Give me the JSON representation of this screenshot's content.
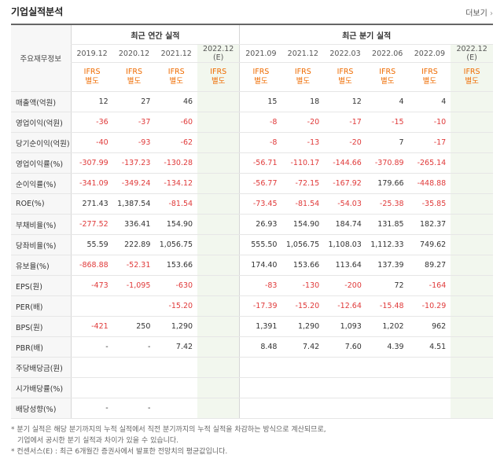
{
  "header": {
    "title": "기업실적분석",
    "more": "더보기"
  },
  "table": {
    "corner": "주요재무정보",
    "groups": [
      {
        "label": "최근 연간 실적",
        "periods": [
          {
            "date": "2019.12",
            "standard": "IFRS",
            "basis": "별도"
          },
          {
            "date": "2020.12",
            "standard": "IFRS",
            "basis": "별도"
          },
          {
            "date": "2021.12",
            "standard": "IFRS",
            "basis": "별도"
          },
          {
            "date": "2022.12",
            "note": "(E)",
            "standard": "IFRS",
            "basis": "별도"
          }
        ]
      },
      {
        "label": "최근 분기 실적",
        "periods": [
          {
            "date": "2021.09",
            "standard": "IFRS",
            "basis": "별도"
          },
          {
            "date": "2021.12",
            "standard": "IFRS",
            "basis": "별도"
          },
          {
            "date": "2022.03",
            "standard": "IFRS",
            "basis": "별도"
          },
          {
            "date": "2022.06",
            "standard": "IFRS",
            "basis": "별도"
          },
          {
            "date": "2022.09",
            "standard": "IFRS",
            "basis": "별도"
          },
          {
            "date": "2022.12",
            "note": "(E)",
            "standard": "IFRS",
            "basis": "별도"
          }
        ]
      }
    ],
    "rows": [
      {
        "label": "매출액(억원)",
        "values": [
          "12",
          "27",
          "46",
          null,
          "15",
          "18",
          "12",
          "4",
          "4",
          null
        ]
      },
      {
        "label": "영업이익(억원)",
        "values": [
          "-36",
          "-37",
          "-60",
          null,
          "-8",
          "-20",
          "-17",
          "-15",
          "-10",
          null
        ]
      },
      {
        "label": "당기순이익(억원)",
        "values": [
          "-40",
          "-93",
          "-62",
          null,
          "-8",
          "-13",
          "-20",
          "7",
          "-17",
          null
        ]
      },
      {
        "label": "영업이익률(%)",
        "values": [
          "-307.99",
          "-137.23",
          "-130.28",
          null,
          "-56.71",
          "-110.17",
          "-144.66",
          "-370.89",
          "-265.14",
          null
        ]
      },
      {
        "label": "순이익률(%)",
        "values": [
          "-341.09",
          "-349.24",
          "-134.12",
          null,
          "-56.77",
          "-72.15",
          "-167.92",
          "179.66",
          "-448.88",
          null
        ]
      },
      {
        "label": "ROE(%)",
        "values": [
          "271.43",
          "1,387.54",
          "-81.54",
          null,
          "-73.45",
          "-81.54",
          "-54.03",
          "-25.38",
          "-35.85",
          null
        ]
      },
      {
        "label": "부채비율(%)",
        "values": [
          "-277.52",
          "336.41",
          "154.90",
          null,
          "26.93",
          "154.90",
          "184.74",
          "131.85",
          "182.37",
          null
        ]
      },
      {
        "label": "당좌비율(%)",
        "values": [
          "55.59",
          "222.89",
          "1,056.75",
          null,
          "555.50",
          "1,056.75",
          "1,108.03",
          "1,112.33",
          "749.62",
          null
        ]
      },
      {
        "label": "유보율(%)",
        "values": [
          "-868.88",
          "-52.31",
          "153.66",
          null,
          "174.40",
          "153.66",
          "113.64",
          "137.39",
          "89.27",
          null
        ]
      },
      {
        "label": "EPS(원)",
        "values": [
          "-473",
          "-1,095",
          "-630",
          null,
          "-83",
          "-130",
          "-200",
          "72",
          "-164",
          null
        ]
      },
      {
        "label": "PER(배)",
        "values": [
          null,
          null,
          "-15.20",
          null,
          "-17.39",
          "-15.20",
          "-12.64",
          "-15.48",
          "-10.29",
          null
        ]
      },
      {
        "label": "BPS(원)",
        "values": [
          "-421",
          "250",
          "1,290",
          null,
          "1,391",
          "1,290",
          "1,093",
          "1,202",
          "962",
          null
        ]
      },
      {
        "label": "PBR(배)",
        "values": [
          "-",
          "-",
          "7.42",
          null,
          "8.48",
          "7.42",
          "7.60",
          "4.39",
          "4.51",
          null
        ]
      },
      {
        "label": "주당배당금(원)",
        "values": [
          null,
          null,
          null,
          null,
          null,
          null,
          null,
          null,
          null,
          null
        ]
      },
      {
        "label": "시가배당률(%)",
        "values": [
          null,
          null,
          null,
          null,
          null,
          null,
          null,
          null,
          null,
          null
        ]
      },
      {
        "label": "배당성향(%)",
        "values": [
          "-",
          "-",
          null,
          null,
          null,
          null,
          null,
          null,
          null,
          null
        ]
      }
    ]
  },
  "footnotes": [
    "* 분기 실적은 해당 분기까지의 누적 실적에서 직전 분기까지의 누적 실적을 차감하는 방식으로 계산되므로,",
    "기업에서 공시한 분기 실적과 차이가 있을 수 있습니다.",
    "* 컨센서스(E) : 최근 6개월간 증권사에서 발표한 전망치의 평균값입니다."
  ]
}
